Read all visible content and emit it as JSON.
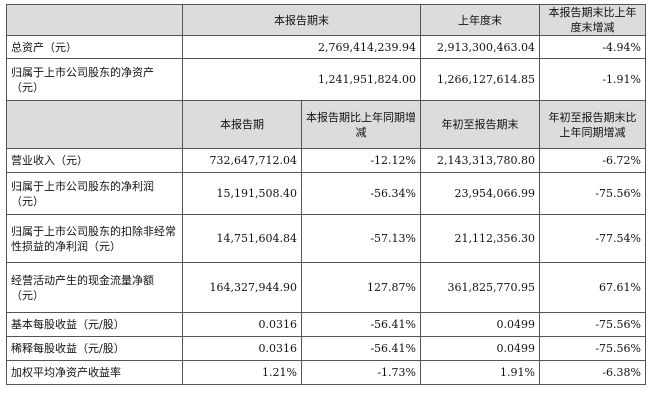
{
  "header1": {
    "c1": "本报告期末",
    "c2": "上年度末",
    "c3": "本报告期末比上年度末增减"
  },
  "rows1": [
    {
      "label": "总资产（元）",
      "v1": "2,769,414,239.94",
      "v2": "2,913,300,463.04",
      "v3": "-4.94%"
    },
    {
      "label": "归属于上市公司股东的净资产（元）",
      "v1": "1,241,951,824.00",
      "v2": "1,266,127,614.85",
      "v3": "-1.91%"
    }
  ],
  "header2": {
    "c1": "本报告期",
    "c2": "本报告期比上年同期增减",
    "c3": "年初至报告期末",
    "c4": "年初至报告期末比上年同期增减"
  },
  "rows2": [
    {
      "label": "营业收入（元）",
      "v1": "732,647,712.04",
      "v2": "-12.12%",
      "v3": "2,143,313,780.80",
      "v4": "-6.72%"
    },
    {
      "label": "归属于上市公司股东的净利润（元）",
      "v1": "15,191,508.40",
      "v2": "-56.34%",
      "v3": "23,954,066.99",
      "v4": "-75.56%"
    },
    {
      "label": "归属于上市公司股东的扣除非经常性损益的净利润（元）",
      "v1": "14,751,604.84",
      "v2": "-57.13%",
      "v3": "21,112,356.30",
      "v4": "-77.54%"
    },
    {
      "label": "经营活动产生的现金流量净额（元）",
      "v1": "164,327,944.90",
      "v2": "127.87%",
      "v3": "361,825,770.95",
      "v4": "67.61%"
    },
    {
      "label": "基本每股收益（元/股）",
      "v1": "0.0316",
      "v2": "-56.41%",
      "v3": "0.0499",
      "v4": "-75.56%"
    },
    {
      "label": "稀释每股收益（元/股）",
      "v1": "0.0316",
      "v2": "-56.41%",
      "v3": "0.0499",
      "v4": "-75.56%"
    },
    {
      "label": "加权平均净资产收益率",
      "v1": "1.21%",
      "v2": "-1.73%",
      "v3": "1.91%",
      "v4": "-6.38%"
    }
  ]
}
